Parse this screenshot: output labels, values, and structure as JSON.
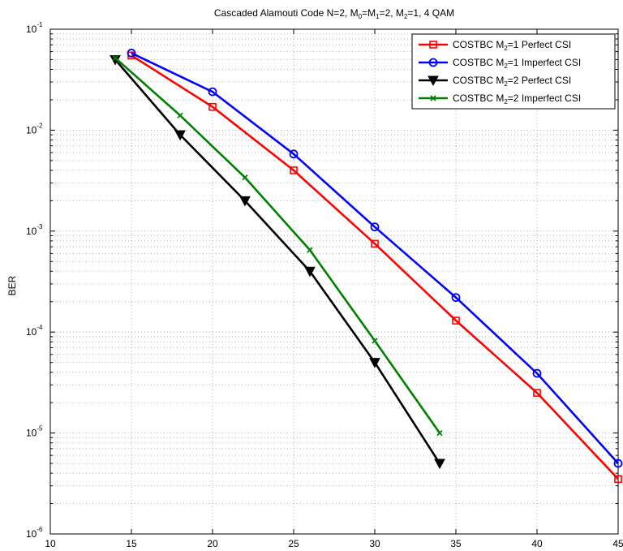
{
  "chart_data": {
    "type": "line",
    "title": {
      "prefix": "Cascaded Alamouti Code N=2, M",
      "sub0": "0",
      "mid1": "=M",
      "sub1": "1",
      "mid2": "=2, M",
      "sub2": "2",
      "suffix": "=1, 4 QAM"
    },
    "xlabel": "",
    "ylabel": "BER",
    "xlim": [
      10,
      45
    ],
    "ylim": [
      1e-06,
      0.1
    ],
    "yscale": "log",
    "grid": true,
    "legend_placement": "top-right",
    "x_ticks": [
      "10",
      "15",
      "20",
      "25",
      "30",
      "35",
      "40",
      "45"
    ],
    "y_ticks": [
      {
        "base": "10",
        "exp": "-1"
      },
      {
        "base": "10",
        "exp": "-2"
      },
      {
        "base": "10",
        "exp": "-3"
      },
      {
        "base": "10",
        "exp": "-4"
      },
      {
        "base": "10",
        "exp": "-5"
      },
      {
        "base": "10",
        "exp": "-6"
      }
    ],
    "series": [
      {
        "label_prefix": "COSTBC M",
        "label_sub": "2",
        "label_suffix": "=1 Perfect CSI",
        "color": "#ff0000",
        "marker": "square",
        "x": [
          15,
          20,
          25,
          30,
          35,
          40,
          45
        ],
        "y": [
          0.055,
          0.017,
          0.004,
          0.00075,
          0.00013,
          2.5e-05,
          3.5e-06
        ]
      },
      {
        "label_prefix": "COSTBC M",
        "label_sub": "2",
        "label_suffix": "=1 Imperfect CSI",
        "color": "#0000ff",
        "marker": "circle",
        "x": [
          15,
          20,
          25,
          30,
          35,
          40,
          45
        ],
        "y": [
          0.058,
          0.024,
          0.0058,
          0.0011,
          0.00022,
          3.9e-05,
          5e-06
        ]
      },
      {
        "label_prefix": "COSTBC M",
        "label_sub": "2",
        "label_suffix": "=2 Perfect CSI",
        "color": "#000000",
        "marker": "triangle-down",
        "x": [
          14,
          18,
          22,
          26,
          30,
          34
        ],
        "y": [
          0.05,
          0.009,
          0.002,
          0.0004,
          5e-05,
          5e-06
        ]
      },
      {
        "label_prefix": "COSTBC M",
        "label_sub": "2",
        "label_suffix": "=2 Imperfect CSI",
        "color": "#008000",
        "marker": "x",
        "x": [
          14,
          18,
          22,
          26,
          30,
          34
        ],
        "y": [
          0.052,
          0.014,
          0.0034,
          0.00065,
          8.2e-05,
          1e-05
        ]
      }
    ]
  }
}
